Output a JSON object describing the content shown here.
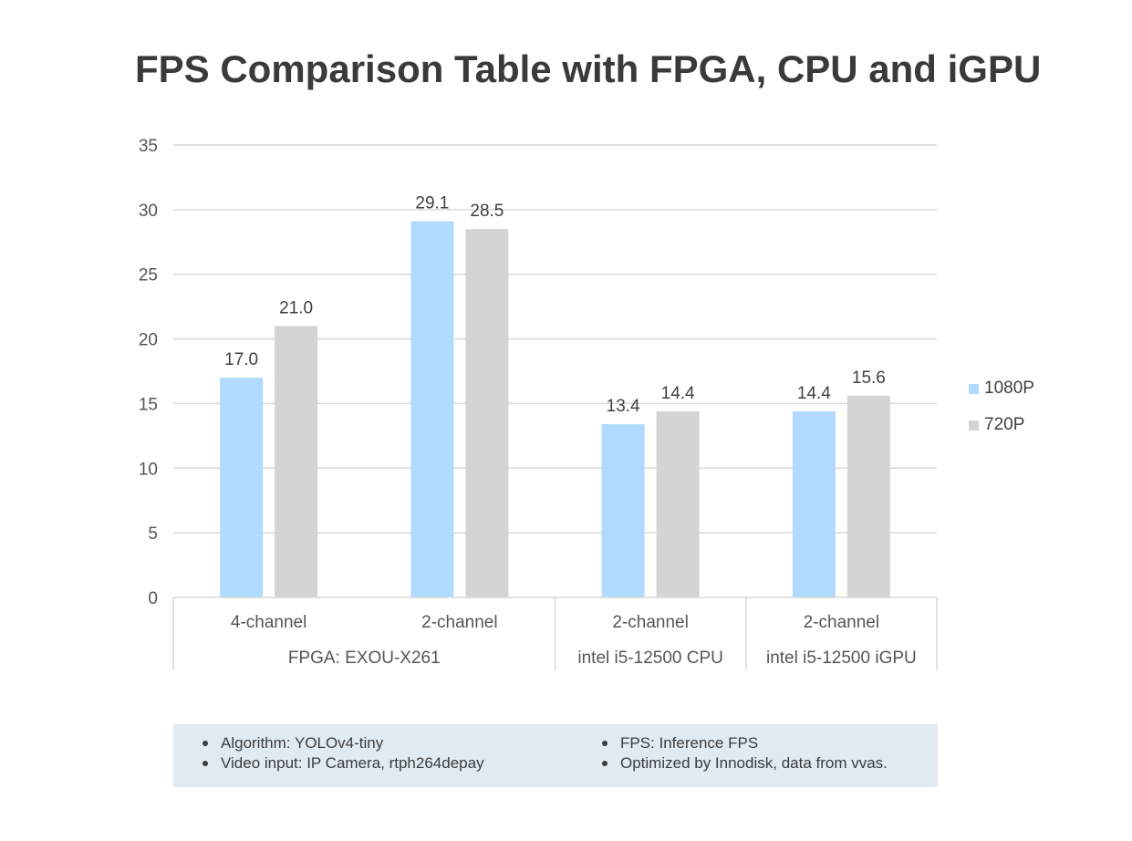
{
  "chart_data": {
    "type": "bar",
    "title": "FPS Comparison Table with FPGA, CPU and iGPU",
    "categories": [
      "4-channel",
      "2-channel",
      "2-channel",
      "2-channel"
    ],
    "groups": [
      {
        "label": "FPGA: EXOU-X261",
        "span": 2
      },
      {
        "label": "intel i5-12500 CPU",
        "span": 1
      },
      {
        "label": "intel i5-12500 iGPU",
        "span": 1
      }
    ],
    "series": [
      {
        "name": "1080P",
        "values": [
          17.0,
          29.1,
          13.4,
          14.4
        ],
        "color": "#b0daff"
      },
      {
        "name": "720P",
        "values": [
          21.0,
          28.5,
          14.4,
          15.6
        ],
        "color": "#d4d4d4"
      }
    ],
    "ylim": [
      0,
      35
    ],
    "yticks": [
      0,
      5,
      10,
      15,
      20,
      25,
      30,
      35
    ],
    "grid": true,
    "legend_position": "right",
    "xlabel": "",
    "ylabel": ""
  },
  "notes": {
    "left": [
      "Algorithm: YOLOv4-tiny",
      "Video input: IP Camera, rtph264depay"
    ],
    "right": [
      "FPS: Inference FPS",
      "Optimized by Innodisk, data from vvas."
    ],
    "background": "#dfeaf3"
  },
  "colors": {
    "gridline": "#d9d9d9",
    "axis_text": "#555555",
    "label_text": "#404040"
  }
}
